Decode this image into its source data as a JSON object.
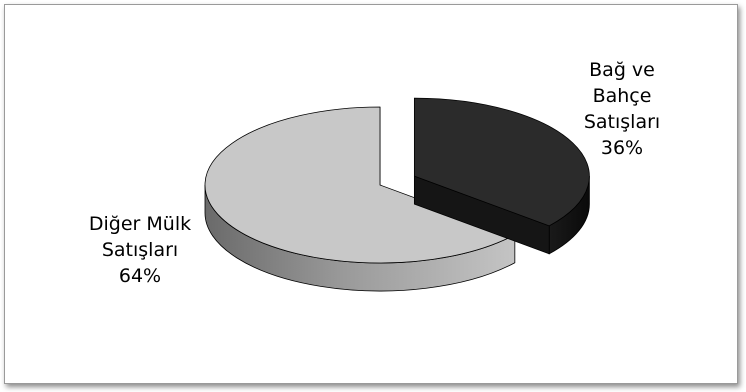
{
  "chart_data": {
    "type": "pie",
    "style": "3d-exploded",
    "title": "",
    "slices": [
      {
        "category_lines": [
          "Bağ ve",
          "Bahçe",
          "Satışları"
        ],
        "percent_label": "36%",
        "value": 36,
        "color": "#2b2b2b",
        "exploded": true
      },
      {
        "category_lines": [
          "Diğer Mülk",
          "Satışları"
        ],
        "percent_label": "64%",
        "value": 64,
        "color": "#c8c8c8",
        "exploded": false
      }
    ],
    "legend": "none"
  }
}
